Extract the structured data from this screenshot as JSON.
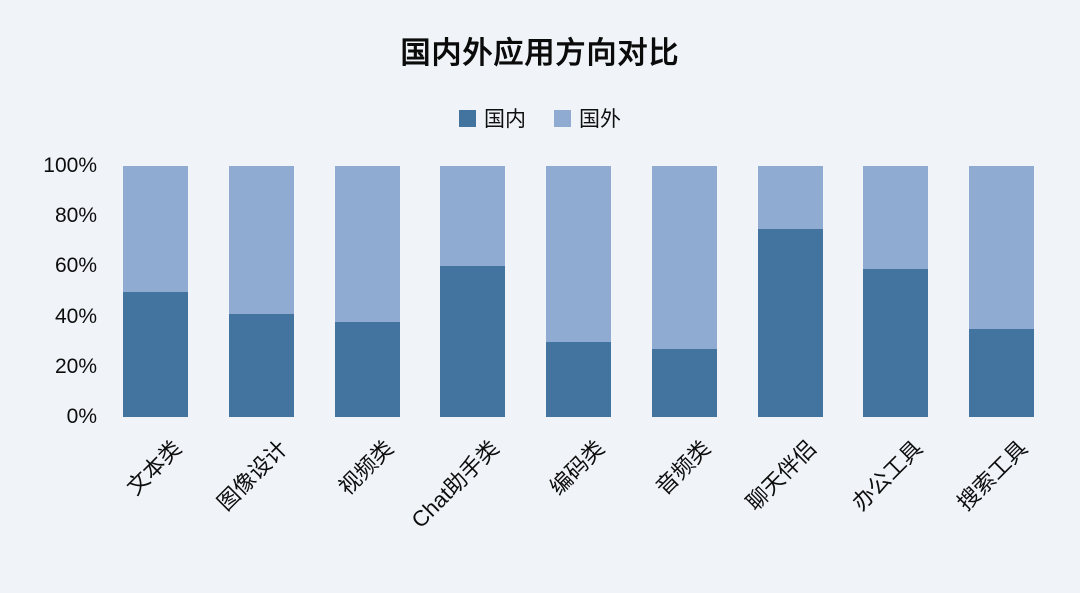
{
  "title": "国内外应用方向对比",
  "colors": {
    "background": "#F0F4F9",
    "domestic": "#42749F",
    "foreign": "#8FABD2",
    "text": "#0d0d0d"
  },
  "chart_data": {
    "type": "bar",
    "stacked": true,
    "title": "国内外应用方向对比",
    "categories": [
      "文本类",
      "图像设计",
      "视频类",
      "Chat助手类",
      "编码类",
      "音频类",
      "聊天伴侣",
      "办公工具",
      "搜索工具"
    ],
    "series": [
      {
        "name": "国内",
        "color": "#42749F",
        "values": [
          50,
          41,
          38,
          60,
          30,
          27,
          75,
          59,
          35
        ]
      },
      {
        "name": "国外",
        "color": "#8FABD2",
        "values": [
          50,
          59,
          62,
          40,
          70,
          73,
          25,
          41,
          65
        ]
      }
    ],
    "yticks": [
      "0%",
      "20%",
      "40%",
      "60%",
      "80%",
      "100%"
    ],
    "ylim": [
      0,
      100
    ],
    "xlabel": "",
    "ylabel": "",
    "grid": false,
    "axis_lines": false,
    "legend_position": "top",
    "xlabel_rotation_deg": 45
  }
}
